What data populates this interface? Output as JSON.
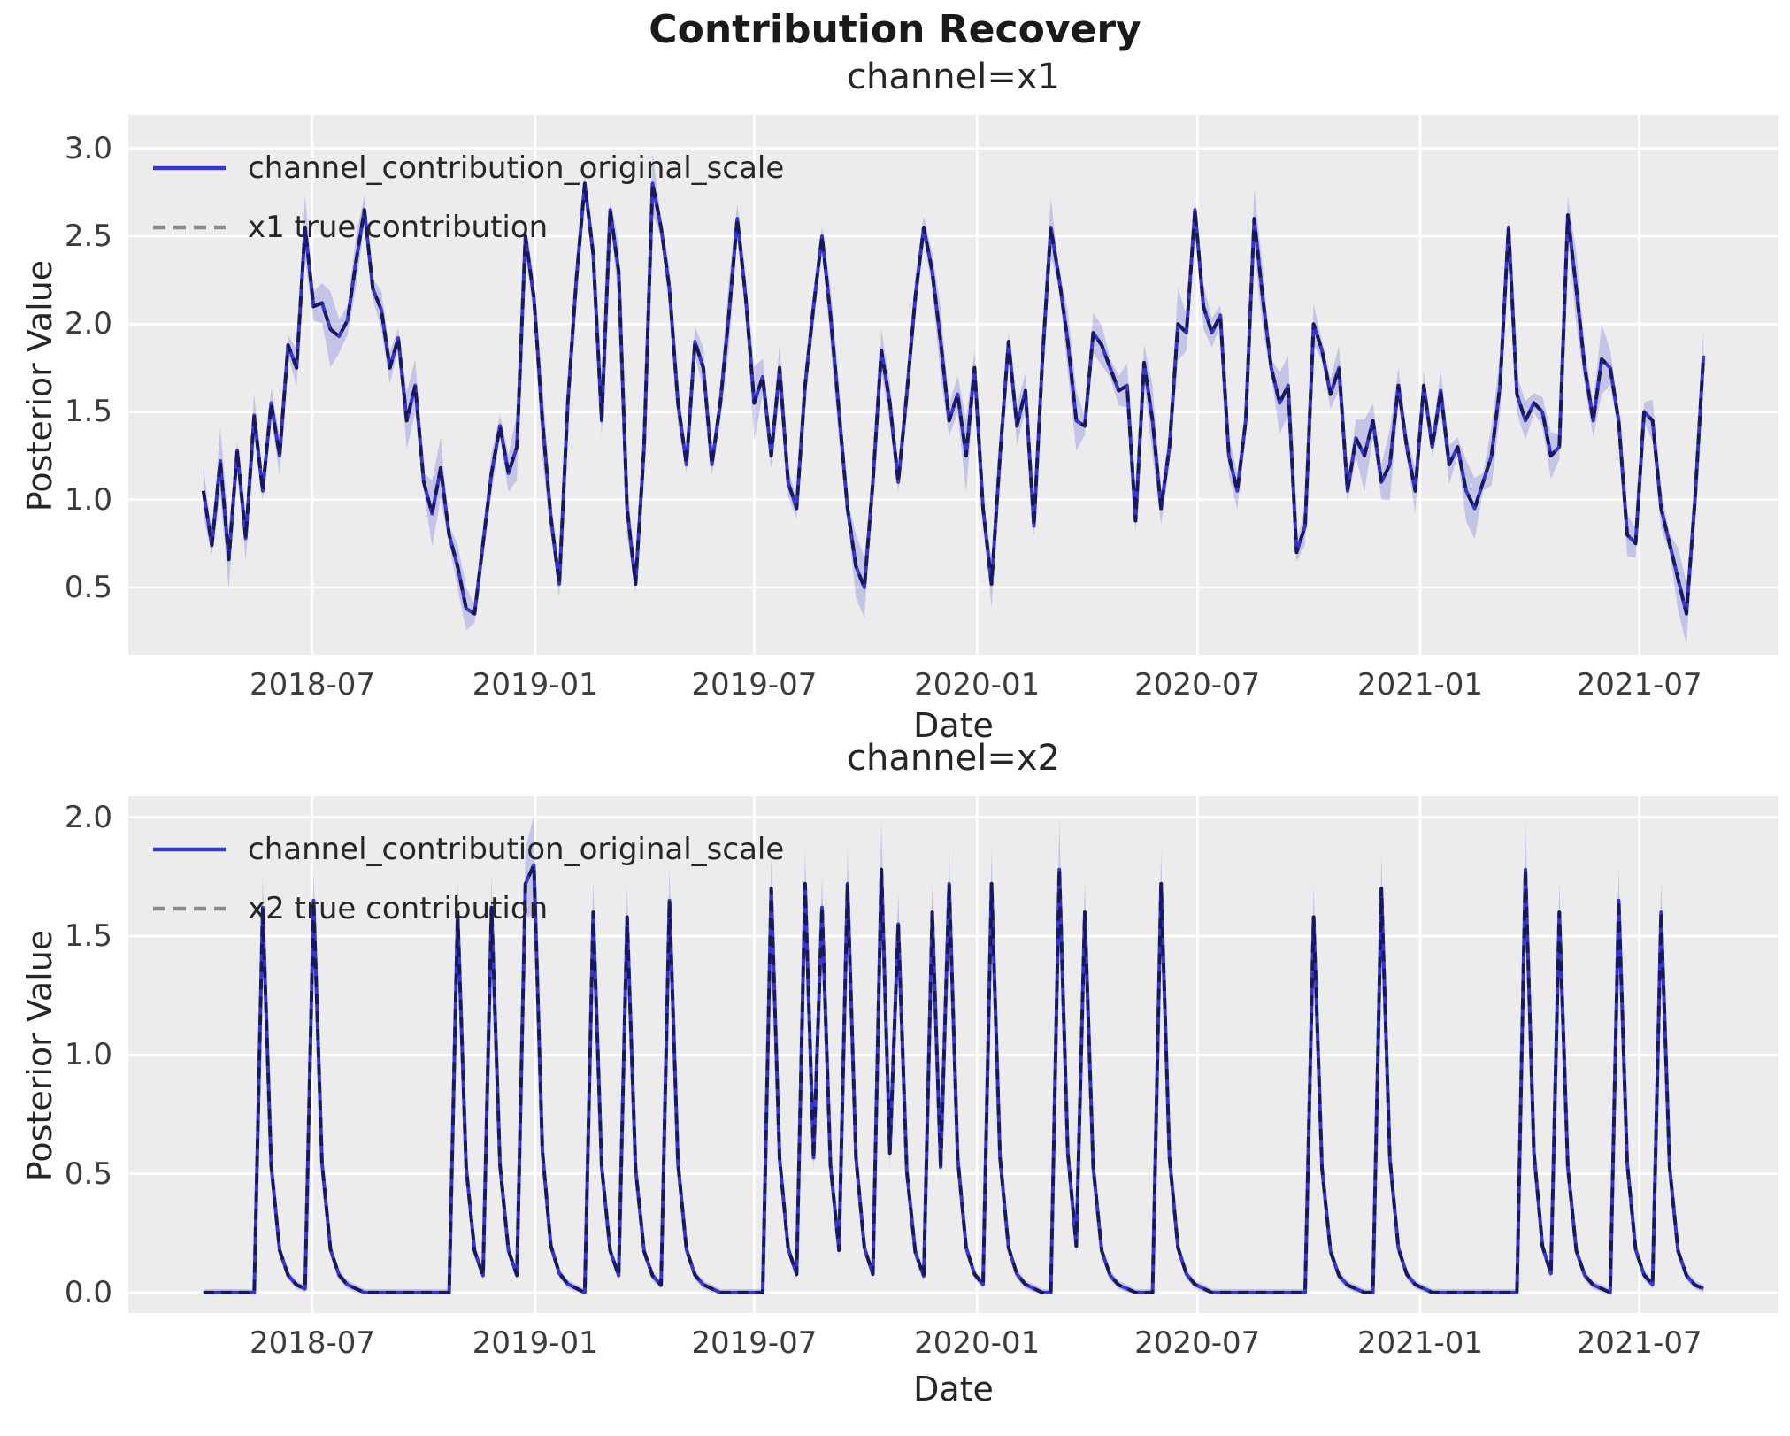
{
  "figure": {
    "suptitle": "Contribution Recovery"
  },
  "axis_labels": {
    "x": "Date",
    "y": "Posterior Value"
  },
  "colors": {
    "figure_bg": "#ffffff",
    "axes_bg": "#ececec",
    "grid": "#ffffff",
    "posterior_line": "#3535d0",
    "hdi_band": "#3535d0",
    "hdi_band_alpha": 0.22,
    "true_line": "#000000",
    "true_line_alpha": 0.55,
    "legend_dash": "#8b8b8b",
    "title_text": "#1a1a1a",
    "tick_text": "#3c3c3c"
  },
  "chart_data": [
    {
      "type": "line",
      "title": "channel=x1",
      "xlabel": "Date",
      "ylabel": "Posterior Value",
      "legend": [
        "channel_contribution_original_scale",
        "x1 true contribution"
      ],
      "legend_position": "upper left",
      "grid": true,
      "x_start_date": "2018-04-02",
      "freq_days": 7,
      "n_points": 178,
      "xlim_days": [
        -62,
        1301
      ],
      "xticks": [
        {
          "label": "2018-07",
          "day": 90
        },
        {
          "label": "2019-01",
          "day": 274
        },
        {
          "label": "2019-07",
          "day": 455
        },
        {
          "label": "2020-01",
          "day": 639
        },
        {
          "label": "2020-07",
          "day": 821
        },
        {
          "label": "2021-01",
          "day": 1005
        },
        {
          "label": "2021-07",
          "day": 1186
        }
      ],
      "ylim": [
        0.117,
        3.19
      ],
      "yticks": [
        0.5,
        1.0,
        1.5,
        2.0,
        2.5,
        3.0
      ],
      "values": [
        1.05,
        0.74,
        1.22,
        0.66,
        1.28,
        0.78,
        1.48,
        1.05,
        1.55,
        1.25,
        1.88,
        1.75,
        2.55,
        2.1,
        2.12,
        1.97,
        1.93,
        2.02,
        2.35,
        2.65,
        2.2,
        2.08,
        1.75,
        1.92,
        1.45,
        1.65,
        1.1,
        0.92,
        1.18,
        0.8,
        0.62,
        0.38,
        0.35,
        0.75,
        1.15,
        1.42,
        1.15,
        1.3,
        2.5,
        2.15,
        1.45,
        0.9,
        0.52,
        1.55,
        2.25,
        2.8,
        2.4,
        1.45,
        2.65,
        2.3,
        0.95,
        0.52,
        1.3,
        2.8,
        2.55,
        2.2,
        1.55,
        1.2,
        1.9,
        1.75,
        1.2,
        1.55,
        2.05,
        2.6,
        2.15,
        1.55,
        1.7,
        1.25,
        1.75,
        1.1,
        0.95,
        1.65,
        2.1,
        2.5,
        2.05,
        1.5,
        0.95,
        0.62,
        0.5,
        1.1,
        1.85,
        1.55,
        1.1,
        1.6,
        2.15,
        2.55,
        2.3,
        1.9,
        1.45,
        1.6,
        1.25,
        1.75,
        0.95,
        0.52,
        1.25,
        1.9,
        1.42,
        1.62,
        0.85,
        1.8,
        2.55,
        2.25,
        1.9,
        1.45,
        1.42,
        1.95,
        1.88,
        1.75,
        1.62,
        1.65,
        0.88,
        1.78,
        1.45,
        0.95,
        1.3,
        2.0,
        1.95,
        2.65,
        2.1,
        1.95,
        2.05,
        1.25,
        1.05,
        1.45,
        2.6,
        2.15,
        1.75,
        1.55,
        1.65,
        0.7,
        0.85,
        2.0,
        1.85,
        1.6,
        1.75,
        1.05,
        1.35,
        1.25,
        1.45,
        1.1,
        1.2,
        1.65,
        1.3,
        1.05,
        1.65,
        1.3,
        1.62,
        1.2,
        1.3,
        1.05,
        0.95,
        1.1,
        1.25,
        1.65,
        2.55,
        1.6,
        1.45,
        1.55,
        1.5,
        1.25,
        1.3,
        2.62,
        2.2,
        1.75,
        1.45,
        1.8,
        1.75,
        1.45,
        0.8,
        0.75,
        1.5,
        1.45,
        0.95,
        0.75,
        0.55,
        0.35,
        1.0,
        1.82
      ],
      "hdi_band_halfwidth_rule": {
        "base": 0.05,
        "amp": 0.17
      }
    },
    {
      "type": "line",
      "title": "channel=x2",
      "xlabel": "Date",
      "ylabel": "Posterior Value",
      "legend": [
        "channel_contribution_original_scale",
        "x2 true contribution"
      ],
      "legend_position": "upper left",
      "grid": true,
      "x_start_date": "2018-04-02",
      "freq_days": 7,
      "n_points": 178,
      "xlim_days": [
        -62,
        1301
      ],
      "xticks": [
        {
          "label": "2018-07",
          "day": 90
        },
        {
          "label": "2019-01",
          "day": 274
        },
        {
          "label": "2019-07",
          "day": 455
        },
        {
          "label": "2020-01",
          "day": 639
        },
        {
          "label": "2020-07",
          "day": 821
        },
        {
          "label": "2021-01",
          "day": 1005
        },
        {
          "label": "2021-07",
          "day": 1186
        }
      ],
      "ylim": [
        -0.086,
        2.088
      ],
      "yticks": [
        0.0,
        0.5,
        1.0,
        1.5,
        2.0
      ],
      "baseline_value": 0.0,
      "spike_weeks": {
        "7": 1.62,
        "13": 1.65,
        "30": 1.6,
        "34": 1.62,
        "38": 1.72,
        "39": 1.8,
        "46": 1.6,
        "50": 1.58,
        "55": 1.65,
        "67": 1.7,
        "71": 1.72,
        "73": 1.62,
        "76": 1.72,
        "80": 1.78,
        "82": 1.55,
        "86": 1.6,
        "88": 1.72,
        "93": 1.72,
        "101": 1.78,
        "104": 1.6,
        "113": 1.72,
        "131": 1.58,
        "139": 1.7,
        "156": 1.78,
        "160": 1.6,
        "167": 1.65,
        "172": 1.6
      },
      "decay_kernel": [
        1,
        0.33,
        0.11,
        0.045,
        0.02,
        0.01
      ],
      "hdi_band_halfwidth_rule": {
        "base": 0.015,
        "coef": 0.075,
        "tall_peak_extra": 0.06
      }
    }
  ]
}
